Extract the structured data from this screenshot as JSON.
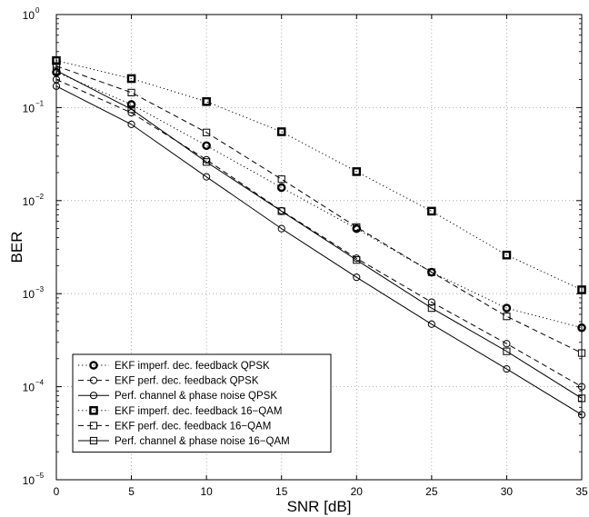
{
  "chart_data": {
    "type": "line",
    "xlabel": "SNR [dB]",
    "ylabel": "BER",
    "xlim": [
      0,
      35
    ],
    "ylim": [
      1e-05,
      1
    ],
    "yscale": "log",
    "grid": true,
    "legend_position": "bottom-left",
    "x_ticks": [
      0,
      5,
      10,
      15,
      20,
      25,
      30,
      35
    ],
    "x_tick_labels": [
      "0",
      "5",
      "10",
      "15",
      "20",
      "25",
      "30",
      "35"
    ],
    "y_ticks": [
      1e-05,
      0.0001,
      0.001,
      0.01,
      0.1,
      1
    ],
    "y_tick_labels": [
      {
        "base": "10",
        "exp": "−5"
      },
      {
        "base": "10",
        "exp": "−4"
      },
      {
        "base": "10",
        "exp": "−3"
      },
      {
        "base": "10",
        "exp": "−2"
      },
      {
        "base": "10",
        "exp": "−1"
      },
      {
        "base": "10",
        "exp": "0"
      }
    ],
    "x": [
      0,
      5,
      10,
      15,
      20,
      25,
      30,
      35
    ],
    "series": [
      {
        "name": "EKF imperf. dec. feedback QPSK",
        "marker": "circle",
        "bold": true,
        "line": "dotted",
        "values": [
          0.24,
          0.108,
          0.039,
          0.0138,
          0.005,
          0.0017,
          0.0007,
          0.00043
        ]
      },
      {
        "name": "EKF perf. dec. feedback QPSK",
        "marker": "circle",
        "bold": false,
        "line": "dashed",
        "values": [
          0.2,
          0.088,
          0.0275,
          0.0078,
          0.0024,
          0.00081,
          0.00029,
          0.0001
        ]
      },
      {
        "name": "Perf. channel & phase noise QPSK",
        "marker": "circle",
        "bold": false,
        "line": "solid",
        "values": [
          0.17,
          0.066,
          0.018,
          0.005,
          0.0015,
          0.00047,
          0.000155,
          5e-05
        ]
      },
      {
        "name": "EKF imperf. dec. feedback 16−QAM",
        "marker": "square",
        "bold": true,
        "line": "dotted",
        "values": [
          0.32,
          0.205,
          0.116,
          0.055,
          0.0205,
          0.0077,
          0.0026,
          0.0011
        ]
      },
      {
        "name": "EKF perf. dec. feedback 16−QAM",
        "marker": "square",
        "bold": false,
        "line": "dashed",
        "values": [
          0.28,
          0.145,
          0.054,
          0.017,
          0.0052,
          0.0017,
          0.00057,
          0.00023
        ]
      },
      {
        "name": "Perf. channel & phase noise 16−QAM",
        "marker": "square",
        "bold": false,
        "line": "solid",
        "values": [
          0.25,
          0.096,
          0.026,
          0.0077,
          0.0023,
          0.0007,
          0.00024,
          7.5e-05
        ]
      }
    ]
  }
}
